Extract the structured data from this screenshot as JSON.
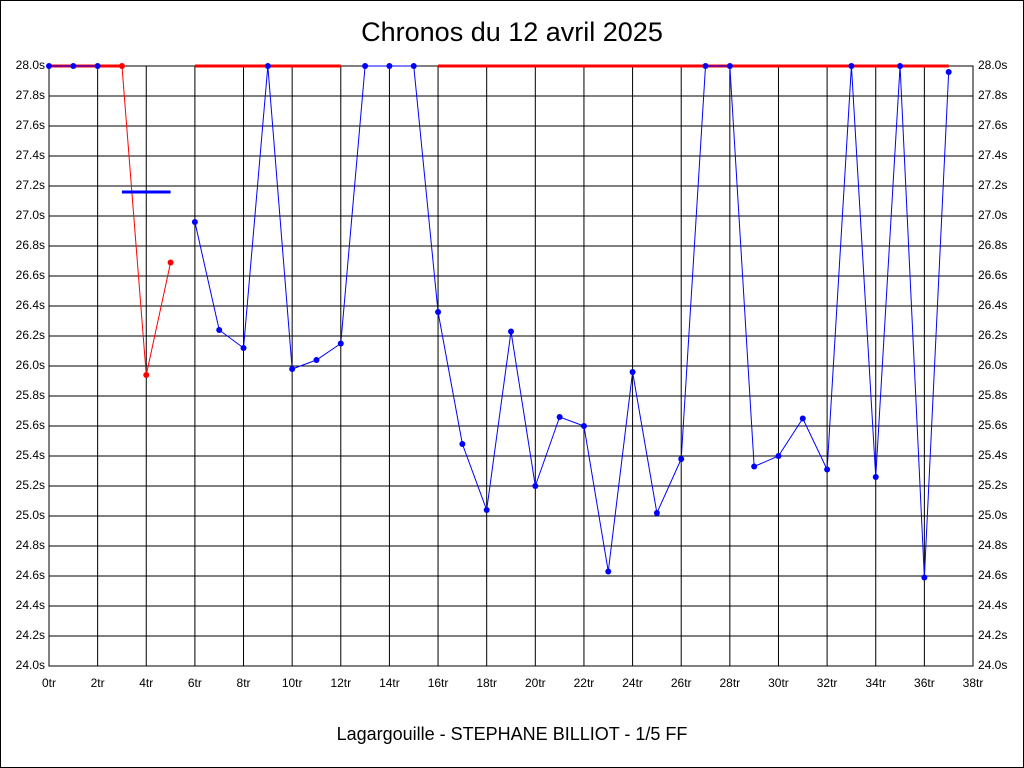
{
  "chart_data": {
    "type": "line",
    "title": "Chronos du 12 avril 2025",
    "xlabel": "Lagargouille - STEPHANE BILLIOT - 1/5 FF",
    "x": [
      0,
      1,
      2,
      3,
      4,
      5,
      6,
      7,
      8,
      9,
      10,
      11,
      12,
      13,
      14,
      15,
      16,
      17,
      18,
      19,
      20,
      21,
      22,
      23,
      24,
      25,
      26,
      27,
      28,
      29,
      30,
      31,
      32,
      33,
      34,
      35,
      36,
      37
    ],
    "series": [
      {
        "color": "#ff0000",
        "width": 3,
        "markers": false,
        "values": [
          28.0,
          28.0,
          28.0,
          28.0,
          null,
          null,
          28.0,
          28.0,
          28.0,
          28.0,
          28.0,
          28.0,
          28.0,
          null,
          null,
          null,
          28.0,
          28.0,
          28.0,
          28.0,
          28.0,
          28.0,
          28.0,
          28.0,
          28.0,
          28.0,
          28.0,
          28.0,
          28.0,
          28.0,
          28.0,
          28.0,
          28.0,
          28.0,
          28.0,
          28.0,
          28.0,
          28.0
        ]
      },
      {
        "color": "#0000ff",
        "width": 1,
        "markers": true,
        "values": [
          28.0,
          28.0,
          28.0,
          null,
          null,
          null,
          26.96,
          26.24,
          26.12,
          28.0,
          25.98,
          26.04,
          26.15,
          28.0,
          28.0,
          28.0,
          26.36,
          25.48,
          25.04,
          26.23,
          25.2,
          25.66,
          25.6,
          24.63,
          25.96,
          25.02,
          25.38,
          28.0,
          28.0,
          25.33,
          25.4,
          25.65,
          25.31,
          28.0,
          25.26,
          28.0,
          24.59,
          27.96
        ]
      },
      {
        "color": "#ff0000",
        "width": 1,
        "markers": true,
        "values": [
          null,
          null,
          null,
          28.0,
          25.94,
          26.69,
          null,
          null,
          null,
          null,
          null,
          null,
          null,
          null,
          null,
          null,
          null,
          null,
          null,
          null,
          null,
          null,
          null,
          null,
          null,
          null,
          null,
          null,
          null,
          null,
          null,
          null,
          null,
          null,
          null,
          null,
          null,
          null
        ]
      },
      {
        "color": "#0000ff",
        "width": 3,
        "markers": false,
        "values": [
          null,
          null,
          null,
          27.16,
          27.16,
          27.16,
          null,
          null,
          null,
          null,
          null,
          null,
          null,
          null,
          null,
          null,
          null,
          null,
          null,
          null,
          null,
          null,
          null,
          null,
          null,
          null,
          null,
          null,
          null,
          null,
          null,
          null,
          null,
          null,
          null,
          null,
          null,
          null
        ]
      }
    ],
    "xlim": [
      0,
      38
    ],
    "xticks": [
      {
        "value": 0,
        "label": "0tr"
      },
      {
        "value": 2,
        "label": "2tr"
      },
      {
        "value": 4,
        "label": "4tr"
      },
      {
        "value": 6,
        "label": "6tr"
      },
      {
        "value": 8,
        "label": "8tr"
      },
      {
        "value": 10,
        "label": "10tr"
      },
      {
        "value": 12,
        "label": "12tr"
      },
      {
        "value": 14,
        "label": "14tr"
      },
      {
        "value": 16,
        "label": "16tr"
      },
      {
        "value": 18,
        "label": "18tr"
      },
      {
        "value": 20,
        "label": "20tr"
      },
      {
        "value": 22,
        "label": "22tr"
      },
      {
        "value": 24,
        "label": "24tr"
      },
      {
        "value": 26,
        "label": "26tr"
      },
      {
        "value": 28,
        "label": "28tr"
      },
      {
        "value": 30,
        "label": "30tr"
      },
      {
        "value": 32,
        "label": "32tr"
      },
      {
        "value": 34,
        "label": "34tr"
      },
      {
        "value": 36,
        "label": "36tr"
      },
      {
        "value": 38,
        "label": "38tr"
      }
    ],
    "ylim": [
      24.0,
      28.0
    ],
    "yticks": [
      {
        "value": 24.0,
        "label": "24.0s"
      },
      {
        "value": 24.2,
        "label": "24.2s"
      },
      {
        "value": 24.4,
        "label": "24.4s"
      },
      {
        "value": 24.6,
        "label": "24.6s"
      },
      {
        "value": 24.8,
        "label": "24.8s"
      },
      {
        "value": 25.0,
        "label": "25.0s"
      },
      {
        "value": 25.2,
        "label": "25.2s"
      },
      {
        "value": 25.4,
        "label": "25.4s"
      },
      {
        "value": 25.6,
        "label": "25.6s"
      },
      {
        "value": 25.8,
        "label": "25.8s"
      },
      {
        "value": 26.0,
        "label": "26.0s"
      },
      {
        "value": 26.2,
        "label": "26.2s"
      },
      {
        "value": 26.4,
        "label": "26.4s"
      },
      {
        "value": 26.6,
        "label": "26.6s"
      },
      {
        "value": 26.8,
        "label": "26.8s"
      },
      {
        "value": 27.0,
        "label": "27.0s"
      },
      {
        "value": 27.2,
        "label": "27.2s"
      },
      {
        "value": 27.4,
        "label": "27.4s"
      },
      {
        "value": 27.6,
        "label": "27.6s"
      },
      {
        "value": 27.8,
        "label": "27.8s"
      },
      {
        "value": 28.0,
        "label": "28.0s"
      }
    ],
    "grid": true
  }
}
